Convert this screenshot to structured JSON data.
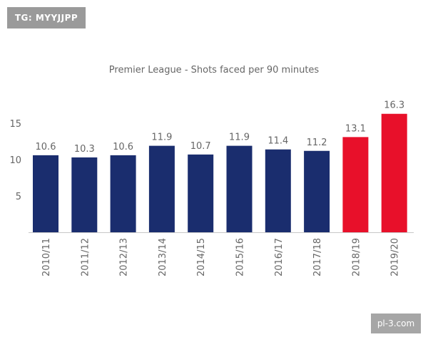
{
  "watermarks": {
    "top_left": "TG: MYYJJPP",
    "bottom_right": "pl-3.com"
  },
  "colors": {
    "bar_default": "#1a2d6e",
    "bar_highlight": "#e8102a",
    "axis": "#c8c8c8",
    "text": "#666666"
  },
  "chart_data": {
    "type": "bar",
    "title": "Premier League - Shots faced per 90 minutes",
    "xlabel": "",
    "ylabel": "",
    "categories": [
      "2010/11",
      "2011/12",
      "2012/13",
      "2013/14",
      "2014/15",
      "2015/16",
      "2016/17",
      "2017/18",
      "2018/19",
      "2019/20"
    ],
    "values": [
      10.6,
      10.3,
      10.6,
      11.9,
      10.7,
      11.9,
      11.4,
      11.2,
      13.1,
      16.3
    ],
    "data_labels": [
      "10.6",
      "10.3",
      "10.6",
      "11.9",
      "10.7",
      "11.9",
      "11.4",
      "11.2",
      "13.1",
      "16.3"
    ],
    "highlight": [
      false,
      false,
      false,
      false,
      false,
      false,
      false,
      false,
      true,
      true
    ],
    "y_ticks": [
      5,
      10,
      15
    ],
    "y_tick_labels": [
      "5",
      "10",
      "15"
    ],
    "ylim": [
      0,
      17.5
    ],
    "grid": false,
    "legend": "none"
  }
}
